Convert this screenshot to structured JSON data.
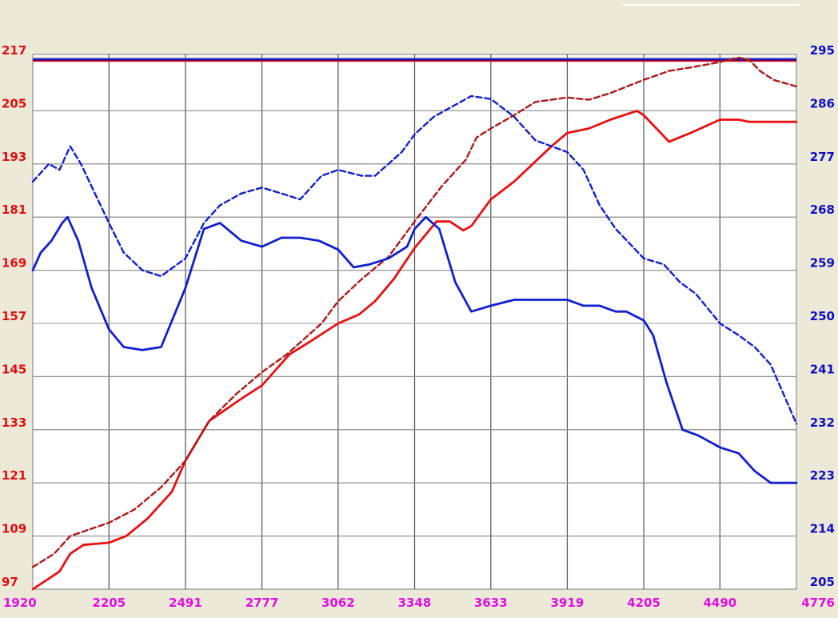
{
  "chart_data": {
    "type": "line",
    "title": "",
    "xlabel": "",
    "ylabel_left": "",
    "ylabel_right": "",
    "grid": true,
    "x_ticks": [
      1920,
      2205,
      2491,
      2777,
      3062,
      3348,
      3633,
      3919,
      4205,
      4490,
      4776
    ],
    "y_left_ticks": [
      97,
      109,
      121,
      133,
      145,
      157,
      169,
      181,
      193,
      205,
      217
    ],
    "y_right_ticks": [
      205,
      214,
      223,
      232,
      241,
      250,
      259,
      268,
      277,
      286,
      295
    ],
    "xlim": [
      1920,
      4776
    ],
    "ylim_left": [
      97,
      217
    ],
    "ylim_right": [
      205,
      295
    ],
    "reference_lines": [
      {
        "axis": "left",
        "value": 216.3,
        "color": "#e00000"
      },
      {
        "axis": "right",
        "value": 294.7,
        "color": "#1010c0"
      }
    ],
    "series": [
      {
        "axis": "left",
        "style": "solid",
        "color": "#e81010",
        "points": [
          [
            1920,
            97
          ],
          [
            2020,
            101
          ],
          [
            2060,
            105
          ],
          [
            2110,
            107
          ],
          [
            2205,
            107.5
          ],
          [
            2270,
            109
          ],
          [
            2350,
            113
          ],
          [
            2440,
            119
          ],
          [
            2491,
            126
          ],
          [
            2580,
            135
          ],
          [
            2700,
            140
          ],
          [
            2777,
            143
          ],
          [
            2880,
            150
          ],
          [
            2960,
            153
          ],
          [
            3062,
            157
          ],
          [
            3140,
            159
          ],
          [
            3200,
            162
          ],
          [
            3270,
            167
          ],
          [
            3348,
            174
          ],
          [
            3430,
            180
          ],
          [
            3480,
            180
          ],
          [
            3530,
            178
          ],
          [
            3560,
            179
          ],
          [
            3633,
            185
          ],
          [
            3720,
            189
          ],
          [
            3790,
            193
          ],
          [
            3860,
            197
          ],
          [
            3919,
            200
          ],
          [
            4000,
            201
          ],
          [
            4080,
            203
          ],
          [
            4180,
            205
          ],
          [
            4205,
            204
          ],
          [
            4300,
            198
          ],
          [
            4380,
            200
          ],
          [
            4490,
            203
          ],
          [
            4560,
            203
          ],
          [
            4600,
            202.5
          ],
          [
            4776,
            202.5
          ]
        ]
      },
      {
        "axis": "left",
        "style": "dashed",
        "color": "#b01818",
        "points": [
          [
            1920,
            102
          ],
          [
            2000,
            105
          ],
          [
            2060,
            109
          ],
          [
            2205,
            112
          ],
          [
            2300,
            115
          ],
          [
            2400,
            120
          ],
          [
            2491,
            126
          ],
          [
            2580,
            135
          ],
          [
            2680,
            141
          ],
          [
            2777,
            146
          ],
          [
            2870,
            150
          ],
          [
            3000,
            157
          ],
          [
            3062,
            162
          ],
          [
            3150,
            167
          ],
          [
            3250,
            172
          ],
          [
            3348,
            180
          ],
          [
            3450,
            188
          ],
          [
            3540,
            194
          ],
          [
            3580,
            199
          ],
          [
            3633,
            201
          ],
          [
            3720,
            204
          ],
          [
            3800,
            207
          ],
          [
            3919,
            208
          ],
          [
            4000,
            207.5
          ],
          [
            4080,
            209
          ],
          [
            4205,
            212
          ],
          [
            4300,
            214
          ],
          [
            4400,
            215
          ],
          [
            4490,
            216
          ],
          [
            4560,
            217
          ],
          [
            4600,
            216.5
          ],
          [
            4640,
            214
          ],
          [
            4690,
            212
          ],
          [
            4776,
            210.5
          ]
        ]
      },
      {
        "axis": "right",
        "style": "solid",
        "color": "#1020d0",
        "points": [
          [
            1920,
            259
          ],
          [
            1950,
            262
          ],
          [
            1990,
            264
          ],
          [
            2030,
            267
          ],
          [
            2050,
            268
          ],
          [
            2090,
            264
          ],
          [
            2140,
            256
          ],
          [
            2205,
            249
          ],
          [
            2260,
            246
          ],
          [
            2330,
            245.5
          ],
          [
            2400,
            246
          ],
          [
            2491,
            256
          ],
          [
            2560,
            266
          ],
          [
            2620,
            267
          ],
          [
            2700,
            264
          ],
          [
            2777,
            263
          ],
          [
            2850,
            264.5
          ],
          [
            2920,
            264.5
          ],
          [
            2990,
            264
          ],
          [
            3062,
            262.5
          ],
          [
            3120,
            259.5
          ],
          [
            3180,
            260
          ],
          [
            3250,
            261
          ],
          [
            3320,
            263
          ],
          [
            3348,
            266
          ],
          [
            3390,
            268
          ],
          [
            3440,
            266
          ],
          [
            3500,
            257
          ],
          [
            3560,
            252
          ],
          [
            3633,
            253
          ],
          [
            3720,
            254
          ],
          [
            3800,
            254
          ],
          [
            3919,
            254
          ],
          [
            3980,
            253
          ],
          [
            4040,
            253
          ],
          [
            4100,
            252
          ],
          [
            4140,
            252
          ],
          [
            4205,
            250.5
          ],
          [
            4240,
            248
          ],
          [
            4290,
            240
          ],
          [
            4350,
            232
          ],
          [
            4410,
            231
          ],
          [
            4490,
            229
          ],
          [
            4560,
            228
          ],
          [
            4620,
            225
          ],
          [
            4680,
            223
          ],
          [
            4776,
            223
          ]
        ]
      },
      {
        "axis": "right",
        "style": "dashed",
        "color": "#1020d0",
        "points": [
          [
            1920,
            274
          ],
          [
            1980,
            277
          ],
          [
            2020,
            276
          ],
          [
            2060,
            280
          ],
          [
            2100,
            277
          ],
          [
            2205,
            267
          ],
          [
            2260,
            262
          ],
          [
            2330,
            259
          ],
          [
            2400,
            258
          ],
          [
            2491,
            261
          ],
          [
            2560,
            267
          ],
          [
            2620,
            270
          ],
          [
            2700,
            272
          ],
          [
            2777,
            273
          ],
          [
            2850,
            272
          ],
          [
            2920,
            271
          ],
          [
            3000,
            275
          ],
          [
            3062,
            276
          ],
          [
            3150,
            275
          ],
          [
            3200,
            275
          ],
          [
            3300,
            279
          ],
          [
            3348,
            282
          ],
          [
            3420,
            285
          ],
          [
            3500,
            287
          ],
          [
            3560,
            288.5
          ],
          [
            3633,
            288
          ],
          [
            3720,
            285
          ],
          [
            3800,
            281
          ],
          [
            3919,
            279
          ],
          [
            3980,
            276
          ],
          [
            4040,
            270
          ],
          [
            4100,
            266
          ],
          [
            4205,
            261
          ],
          [
            4280,
            260
          ],
          [
            4340,
            257
          ],
          [
            4400,
            255
          ],
          [
            4490,
            250
          ],
          [
            4560,
            248
          ],
          [
            4620,
            246
          ],
          [
            4680,
            243
          ],
          [
            4776,
            233
          ]
        ]
      }
    ]
  }
}
